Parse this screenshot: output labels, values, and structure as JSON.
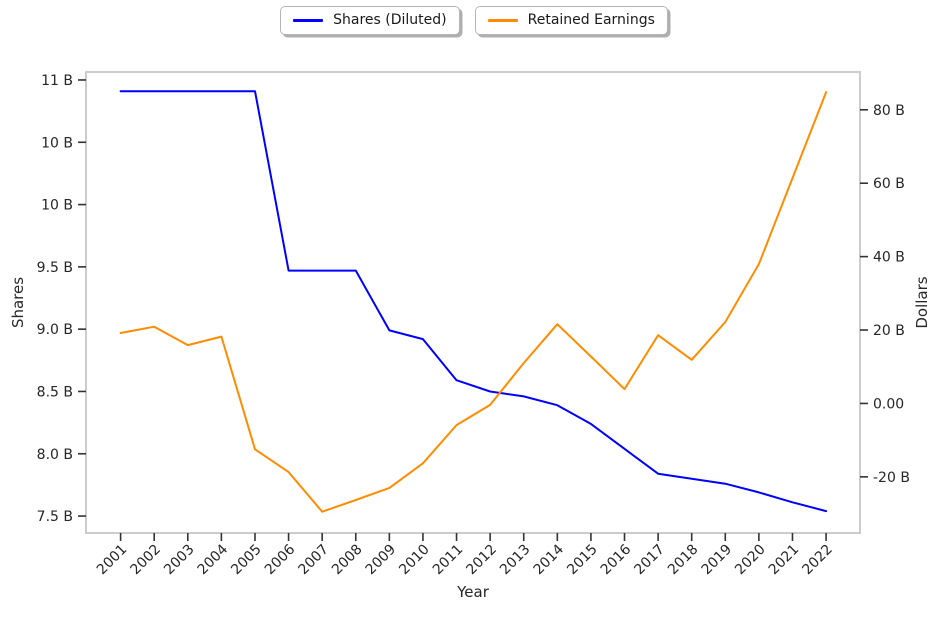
{
  "chart_data": {
    "type": "line",
    "title": "",
    "xlabel": "Year",
    "x": [
      2001,
      2002,
      2003,
      2004,
      2005,
      2006,
      2007,
      2008,
      2009,
      2010,
      2011,
      2012,
      2013,
      2014,
      2015,
      2016,
      2017,
      2018,
      2019,
      2020,
      2021,
      2022
    ],
    "x_tick_labels": [
      "2001",
      "2002",
      "2003",
      "2004",
      "2005",
      "2006",
      "2007",
      "2008",
      "2009",
      "2010",
      "2011",
      "2012",
      "2013",
      "2014",
      "2015",
      "2016",
      "2017",
      "2018",
      "2019",
      "2020",
      "2021",
      "2022"
    ],
    "xlim": [
      1999.97,
      2023.01
    ],
    "series": [
      {
        "name": "Shares (Diluted)",
        "axis": "left",
        "color": "#0000ff",
        "values": [
          10.91,
          10.91,
          10.91,
          10.91,
          10.91,
          9.47,
          9.47,
          9.47,
          8.99,
          8.92,
          8.59,
          8.5,
          8.46,
          8.39,
          8.24,
          8.04,
          7.84,
          7.8,
          7.76,
          7.69,
          7.61,
          7.54
        ]
      },
      {
        "name": "Retained Earnings",
        "axis": "right",
        "color": "#ff8c00",
        "values": [
          19.2,
          20.9,
          15.9,
          18.2,
          -12.5,
          -18.7,
          -29.5,
          -26.3,
          -23.0,
          -16.3,
          -5.9,
          -0.4,
          11.0,
          21.6,
          12.8,
          3.9,
          18.6,
          11.9,
          22.2,
          38.0,
          61.4,
          84.8
        ]
      }
    ],
    "left_axis": {
      "label": "Shares",
      "unit": "B",
      "lim": [
        7.364,
        11.064
      ],
      "ticks": [
        7.5,
        8.0,
        8.5,
        9.0,
        9.5,
        10.0,
        10.5,
        11.0
      ],
      "tick_labels": [
        "7.5 B",
        "8.0 B",
        "8.5 B",
        "9.0 B",
        "9.5 B",
        "10 B",
        "10 B",
        "11 B"
      ]
    },
    "right_axis": {
      "label": "Dollars",
      "unit": "B",
      "lim": [
        -35.3,
        90.3
      ],
      "ticks": [
        -20,
        0,
        20,
        40,
        60,
        80
      ],
      "tick_labels": [
        "-20 B",
        "0.00",
        "20 B",
        "40 B",
        "60 B",
        "80 B"
      ]
    },
    "grid": false,
    "legend_position": "top-center-outside"
  },
  "legend": {
    "items": [
      {
        "label": "Shares (Diluted)",
        "color": "#0000ff"
      },
      {
        "label": "Retained Earnings",
        "color": "#ff8c00"
      }
    ]
  },
  "colors": {
    "background": "#ffffff",
    "spine": "#cccccc",
    "tick": "#333333",
    "text": "#262626",
    "shares_line": "#0000ff",
    "retained_line": "#ff8c00"
  }
}
